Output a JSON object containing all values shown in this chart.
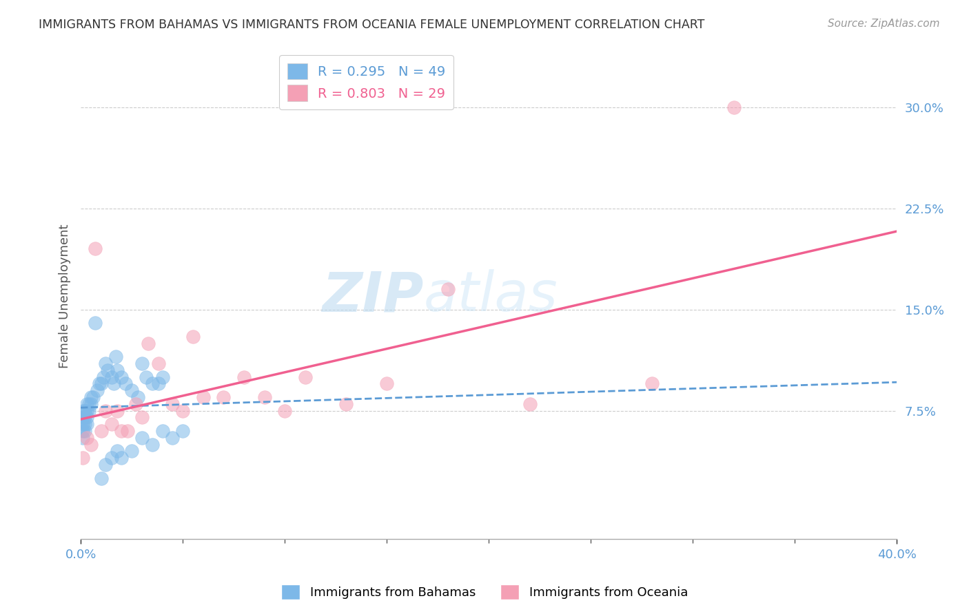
{
  "title": "IMMIGRANTS FROM BAHAMAS VS IMMIGRANTS FROM OCEANIA FEMALE UNEMPLOYMENT CORRELATION CHART",
  "source": "Source: ZipAtlas.com",
  "ylabel": "Female Unemployment",
  "xlim": [
    0.0,
    0.4
  ],
  "ylim": [
    -0.02,
    0.34
  ],
  "series_bahamas": {
    "label": "Immigrants from Bahamas",
    "R": 0.295,
    "N": 49,
    "color": "#7db8e8",
    "x": [
      0.001,
      0.001,
      0.001,
      0.001,
      0.001,
      0.002,
      0.002,
      0.002,
      0.002,
      0.003,
      0.003,
      0.003,
      0.003,
      0.004,
      0.004,
      0.005,
      0.005,
      0.006,
      0.007,
      0.008,
      0.009,
      0.01,
      0.011,
      0.012,
      0.013,
      0.015,
      0.016,
      0.017,
      0.018,
      0.02,
      0.022,
      0.025,
      0.028,
      0.03,
      0.032,
      0.035,
      0.038,
      0.04,
      0.012,
      0.015,
      0.018,
      0.02,
      0.025,
      0.03,
      0.035,
      0.04,
      0.045,
      0.05,
      0.01
    ],
    "y": [
      0.055,
      0.06,
      0.065,
      0.07,
      0.075,
      0.06,
      0.065,
      0.07,
      0.075,
      0.065,
      0.07,
      0.075,
      0.08,
      0.075,
      0.08,
      0.08,
      0.085,
      0.085,
      0.14,
      0.09,
      0.095,
      0.095,
      0.1,
      0.11,
      0.105,
      0.1,
      0.095,
      0.115,
      0.105,
      0.1,
      0.095,
      0.09,
      0.085,
      0.11,
      0.1,
      0.095,
      0.095,
      0.1,
      0.035,
      0.04,
      0.045,
      0.04,
      0.045,
      0.055,
      0.05,
      0.06,
      0.055,
      0.06,
      0.025
    ]
  },
  "series_oceania": {
    "label": "Immigrants from Oceania",
    "R": 0.803,
    "N": 29,
    "color": "#f4a0b5",
    "x": [
      0.001,
      0.003,
      0.005,
      0.007,
      0.01,
      0.012,
      0.015,
      0.018,
      0.02,
      0.023,
      0.027,
      0.03,
      0.033,
      0.038,
      0.045,
      0.05,
      0.055,
      0.06,
      0.07,
      0.08,
      0.09,
      0.1,
      0.11,
      0.13,
      0.15,
      0.18,
      0.22,
      0.28,
      0.32
    ],
    "y": [
      0.04,
      0.055,
      0.05,
      0.195,
      0.06,
      0.075,
      0.065,
      0.075,
      0.06,
      0.06,
      0.08,
      0.07,
      0.125,
      0.11,
      0.08,
      0.075,
      0.13,
      0.085,
      0.085,
      0.1,
      0.085,
      0.075,
      0.1,
      0.08,
      0.095,
      0.165,
      0.08,
      0.095,
      0.3
    ]
  },
  "watermark": "ZIPatlas",
  "trend_bahamas_color": "#5b9bd5",
  "trend_oceania_color": "#f06090",
  "background_color": "#ffffff",
  "grid_color": "#cccccc"
}
